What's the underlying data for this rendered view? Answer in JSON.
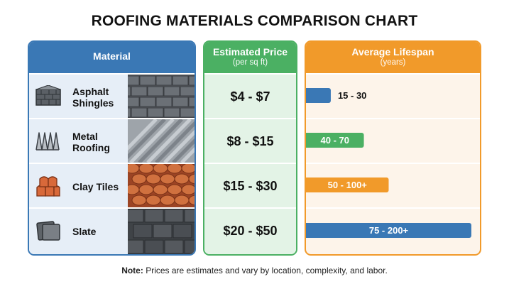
{
  "title": "ROOFING MATERIALS COMPARISON CHART",
  "columns": {
    "material": {
      "label": "Material"
    },
    "price": {
      "label": "Estimated Price",
      "sublabel": "(per sq ft)"
    },
    "lifespan": {
      "label": "Average Lifespan",
      "sublabel": "(years)"
    }
  },
  "rows": [
    {
      "material": "Asphalt Shingles",
      "material_lines": [
        "Asphalt",
        "Shingles"
      ],
      "icon": "asphalt-shingles-icon",
      "price": "$4 - $7",
      "lifespan_label": "15 - 30",
      "color": "#3a78b5"
    },
    {
      "material": "Metal Roofing",
      "material_lines": [
        "Metal",
        "Roofing"
      ],
      "icon": "metal-roofing-icon",
      "price": "$8 - $15",
      "lifespan_label": "40 - 70",
      "color": "#4bb063"
    },
    {
      "material": "Clay Tiles",
      "material_lines": [
        "Clay Tiles"
      ],
      "icon": "clay-tiles-icon",
      "price": "$15 - $30",
      "lifespan_label": "50 - 100+",
      "color": "#f19a2a"
    },
    {
      "material": "Slate",
      "material_lines": [
        "Slate"
      ],
      "icon": "slate-icon",
      "price": "$20 - $50",
      "lifespan_label": "75 - 200+",
      "color": "#3a78b5"
    }
  ],
  "chart_data": {
    "type": "bar",
    "categories": [
      "Asphalt Shingles",
      "Metal Roofing",
      "Clay Tiles",
      "Slate"
    ],
    "series": [
      {
        "values": [
          [
            15,
            30
          ],
          [
            40,
            70
          ],
          [
            50,
            100
          ],
          [
            75,
            200
          ]
        ]
      }
    ],
    "labels": [
      "15 - 30",
      "40 - 70",
      "50 - 100+",
      "75 - 200+"
    ],
    "xlim": [
      0,
      200
    ],
    "orientation": "horizontal",
    "grid": false
  },
  "note": {
    "prefix": "Note:",
    "text": " Prices are estimates and vary by location, complexity, and labor."
  }
}
